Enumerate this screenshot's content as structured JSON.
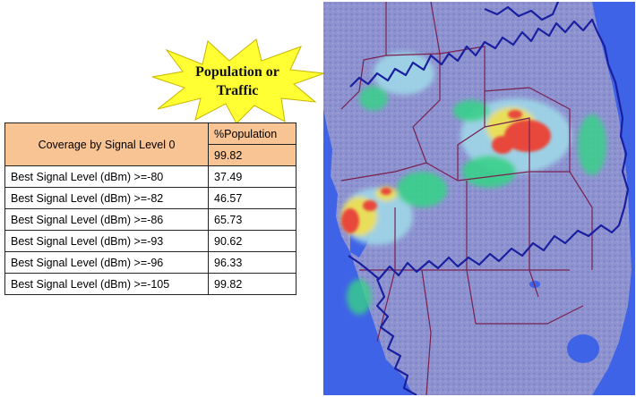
{
  "callout": {
    "line1": "Population or",
    "line2": "Traffic",
    "fill": "#ffff33"
  },
  "table": {
    "header_label": "Coverage by Signal Level 0",
    "column_header": "%Population",
    "overall_value": "99.82",
    "header_color": "#f9c493",
    "rows": [
      {
        "label": "Best Signal Level (dBm) >=-80",
        "value": "37.49"
      },
      {
        "label": "Best Signal Level (dBm) >=-82",
        "value": "46.57"
      },
      {
        "label": "Best Signal Level (dBm) >=-86",
        "value": "65.73"
      },
      {
        "label": "Best Signal Level (dBm) >=-93",
        "value": "90.62"
      },
      {
        "label": "Best Signal Level (dBm) >=-96",
        "value": "96.33"
      },
      {
        "label": "Best Signal Level (dBm) >=-105",
        "value": "99.82"
      }
    ]
  },
  "map": {
    "colors": {
      "water": "#3f63e6",
      "land": "#8e93cf",
      "low_density": "#9fd7e8",
      "medium_density": "#39d08a",
      "high_density": "#f2e04a",
      "very_high_density": "#e8463a",
      "county_lines": "#7a1f4d",
      "coverage_boundary": "#1a1fa0"
    }
  }
}
